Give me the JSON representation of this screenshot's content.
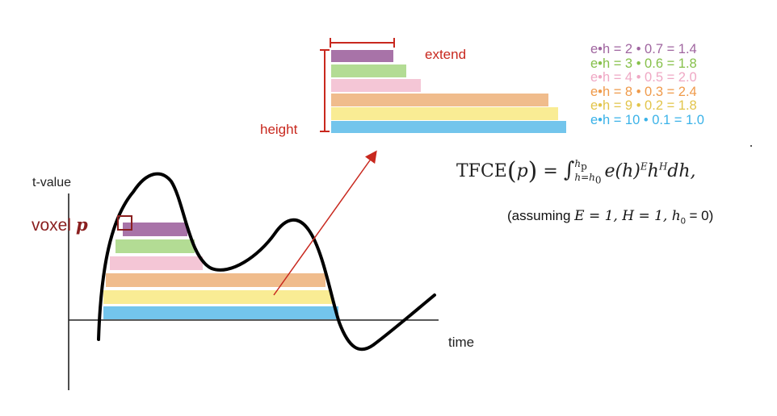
{
  "labels": {
    "extend": "extend",
    "height": "height",
    "t_value": "t-value",
    "time": "time",
    "voxel": "voxel",
    "voxel_p": "p"
  },
  "legend": [
    {
      "text": "e•h = 2 • 0.7 = 1.4",
      "color": "#a066a0"
    },
    {
      "text": "e•h = 3 • 0.6 = 1.8",
      "color": "#86c04a"
    },
    {
      "text": "e•h = 4 • 0.5 = 2.0",
      "color": "#efa8c4"
    },
    {
      "text": "e•h = 8 • 0.3 = 2.4",
      "color": "#ef9a4a"
    },
    {
      "text": "e•h = 9 • 0.2 = 1.8",
      "color": "#e2c44a"
    },
    {
      "text": "e•h = 10 • 0.1 = 1.0",
      "color": "#3ab2e8"
    }
  ],
  "formula": {
    "lhs": "TFCE",
    "arg": "p",
    "integrand": "e(h)",
    "exp_E": "E",
    "h": "h",
    "exp_H": "H",
    "dh": "dh,",
    "upper": "h",
    "upper_sub": "p",
    "lower": "h=h",
    "lower_sub": "0"
  },
  "assumption": {
    "open": "(assuming ",
    "cond": "E = 1, H = 1, h",
    "sub": "0",
    "close": " = 0)"
  },
  "colors": {
    "purple": "#a873a8",
    "green": "#b3dc94",
    "pink": "#f4c6d6",
    "orange": "#f0bc8c",
    "yellow": "#f9ec94",
    "blue": "#73c5ec",
    "red_accent": "#c8281e",
    "voxel_color": "#8a1f1f"
  }
}
